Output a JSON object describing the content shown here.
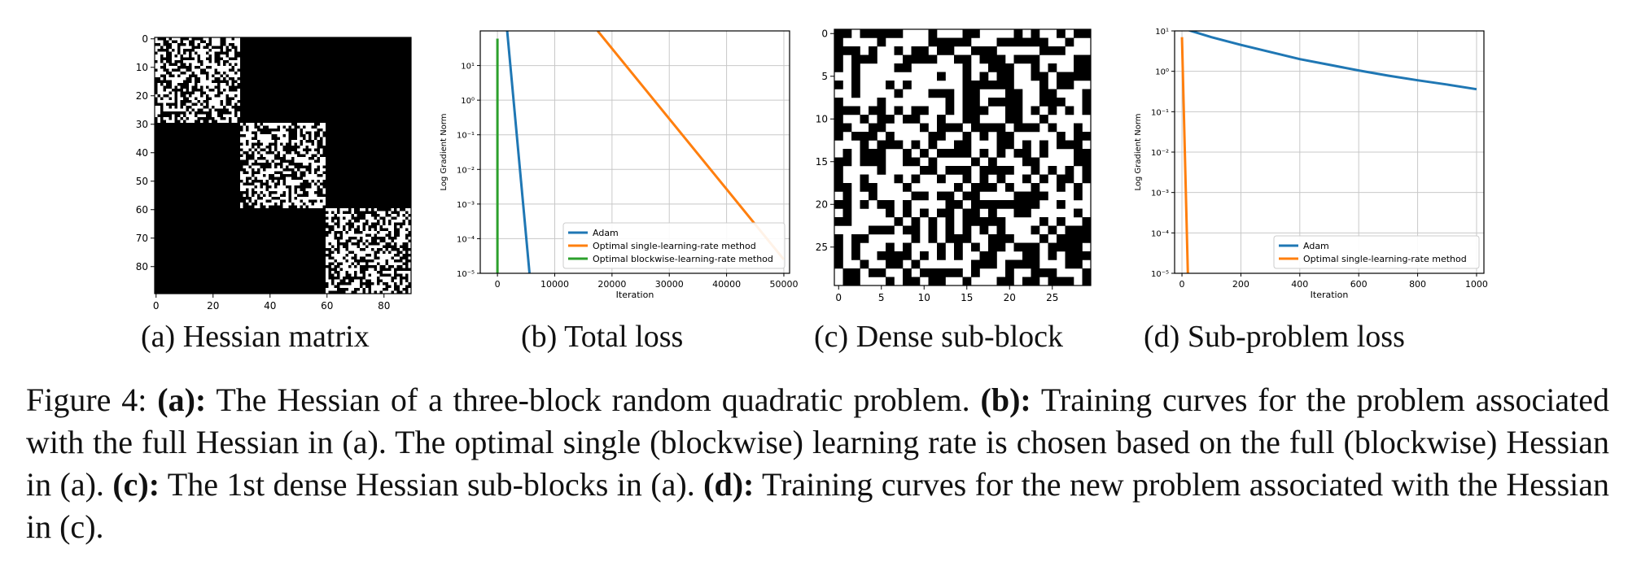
{
  "panels": {
    "a": {
      "caption_label": "(a)",
      "caption_title": "Hessian matrix",
      "yticks": [
        "0",
        "10",
        "20",
        "30",
        "40",
        "50",
        "60",
        "70",
        "80"
      ],
      "xticks": [
        "0",
        "20",
        "40",
        "60",
        "80"
      ],
      "matrix_size": 90,
      "dense_blocks": [
        [
          0,
          30
        ],
        [
          30,
          60
        ],
        [
          60,
          90
        ]
      ]
    },
    "b": {
      "caption_label": "(b)",
      "caption_title": "Total loss"
    },
    "c": {
      "caption_label": "(c)",
      "caption_title": "Dense sub-block",
      "yticks": [
        "0",
        "5",
        "10",
        "15",
        "20",
        "25"
      ],
      "xticks": [
        "0",
        "5",
        "10",
        "15",
        "20",
        "25"
      ],
      "grid_size": 30
    },
    "d": {
      "caption_label": "(d)",
      "caption_title": "Sub-problem loss"
    }
  },
  "chart_data": [
    {
      "type": "line",
      "panel": "b",
      "title": "",
      "xlabel": "Iteration",
      "ylabel": "Log Gradient Norm",
      "xlim": [
        -3000,
        51000
      ],
      "ylim_log10": [
        -5,
        2
      ],
      "log_y": true,
      "grid": true,
      "legend": "bottom-right",
      "xticks": [
        0,
        10000,
        20000,
        30000,
        40000,
        50000
      ],
      "yticks": [
        "10⁻⁵",
        "10⁻⁴",
        "10⁻³",
        "10⁻²",
        "10⁻¹",
        "10⁰",
        "10¹"
      ],
      "series": [
        {
          "name": "Adam",
          "color": "#1f77b4",
          "x": [
            1700,
            5600
          ],
          "y": [
            100,
            1e-05
          ]
        },
        {
          "name": "Optimal single-learning-rate method",
          "color": "#ff7f0e",
          "x": [
            17500,
            50000
          ],
          "y": [
            100,
            2.5e-05
          ]
        },
        {
          "name": "Optimal blockwise-learning-rate method",
          "color": "#2ca02c",
          "x": [
            0,
            0
          ],
          "y": [
            60,
            1e-05
          ]
        }
      ]
    },
    {
      "type": "line",
      "panel": "d",
      "title": "",
      "xlabel": "Iteration",
      "ylabel": "Log Gradient Norm",
      "xlim": [
        -25,
        1025
      ],
      "ylim_log10": [
        -5,
        1
      ],
      "log_y": true,
      "grid": true,
      "legend": "bottom-right",
      "xticks": [
        0,
        200,
        400,
        600,
        800,
        1000
      ],
      "yticks": [
        "10⁻⁵",
        "10⁻⁴",
        "10⁻³",
        "10⁻²",
        "10⁻¹",
        "10⁰",
        "10¹"
      ],
      "series": [
        {
          "name": "Adam",
          "color": "#1f77b4",
          "x": [
            0,
            30,
            100,
            200,
            300,
            400,
            500,
            600,
            700,
            800,
            900,
            1000
          ],
          "y": [
            12,
            10,
            7,
            4.5,
            3,
            2,
            1.45,
            1.05,
            0.78,
            0.6,
            0.47,
            0.36
          ]
        },
        {
          "name": "Optimal single-learning-rate method",
          "color": "#ff7f0e",
          "x": [
            0,
            20
          ],
          "y": [
            7,
            1e-05
          ]
        }
      ]
    }
  ],
  "caption": {
    "figure_label": "Figure 4:",
    "a_label": "(a):",
    "a_text": " The Hessian of a three-block random quadratic problem. ",
    "b_label": "(b):",
    "b_text": " Training curves for the problem associated with the full Hessian in (a). The optimal single (blockwise) learning rate is chosen based on the full (blockwise) Hessian in (a). ",
    "c_label": "(c):",
    "c_text": " The 1st dense Hessian sub-blocks in (a). ",
    "d_label": "(d):",
    "d_text": " Training curves for the new problem associated with the Hessian in (c)."
  }
}
